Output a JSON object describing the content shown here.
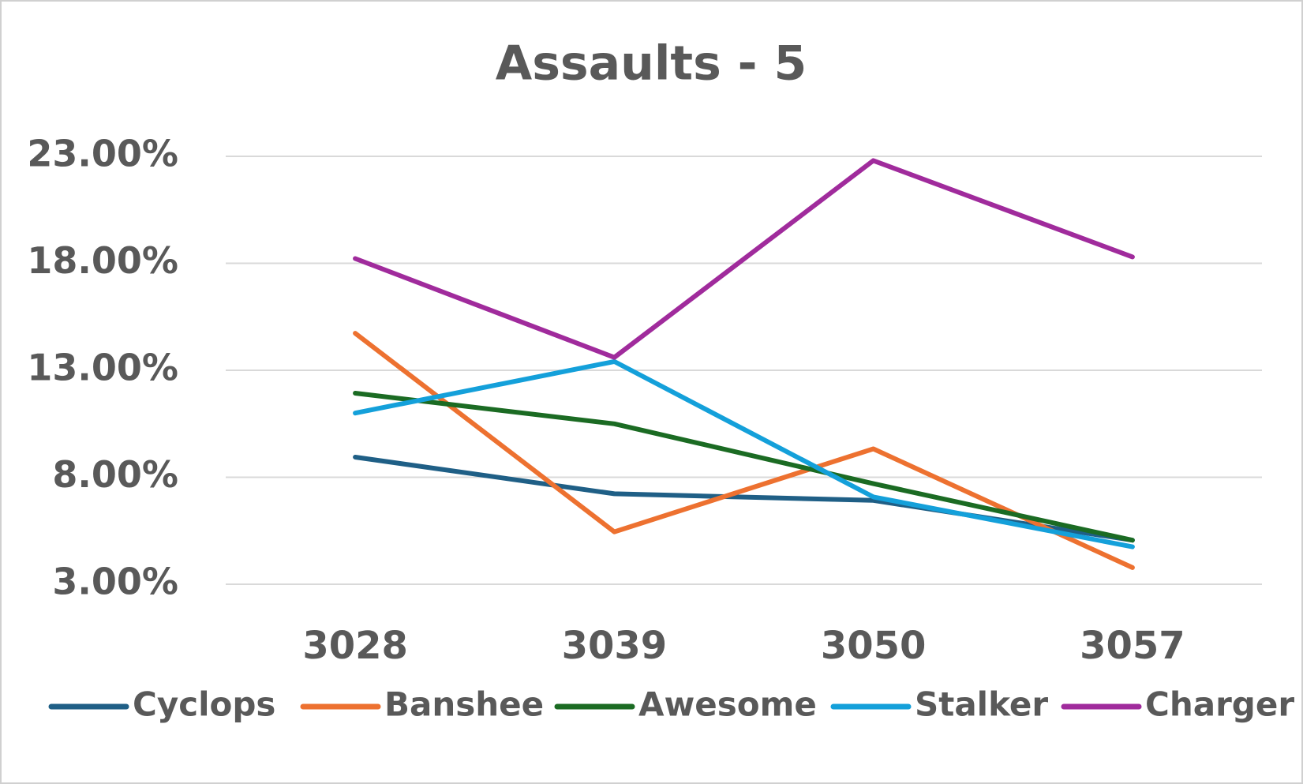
{
  "chart_data": {
    "type": "line",
    "title": "Assaults - 5",
    "categories": [
      "3028",
      "3039",
      "3050",
      "3057"
    ],
    "series": [
      {
        "name": "Cyclops",
        "color": "#1f5f86",
        "values": [
          8.94,
          7.23,
          6.92,
          5.06
        ]
      },
      {
        "name": "Banshee",
        "color": "#ed7130",
        "values": [
          14.73,
          5.45,
          9.33,
          3.78
        ]
      },
      {
        "name": "Awesome",
        "color": "#1b6b23",
        "values": [
          11.93,
          10.5,
          7.7,
          5.06
        ]
      },
      {
        "name": "Stalker",
        "color": "#14a0da",
        "values": [
          11.0,
          13.41,
          7.08,
          4.75
        ]
      },
      {
        "name": "Charger",
        "color": "#a02b9c",
        "values": [
          18.22,
          13.6,
          22.8,
          18.3
        ]
      }
    ],
    "ylim": [
      3,
      23
    ],
    "yticks": [
      {
        "value": 3,
        "label": "3.00%"
      },
      {
        "value": 8,
        "label": "8.00%"
      },
      {
        "value": 13,
        "label": "13.00%"
      },
      {
        "value": 18,
        "label": "18.00%"
      },
      {
        "value": 23,
        "label": "23.00%"
      }
    ],
    "grid": true,
    "legend": "bottom"
  }
}
